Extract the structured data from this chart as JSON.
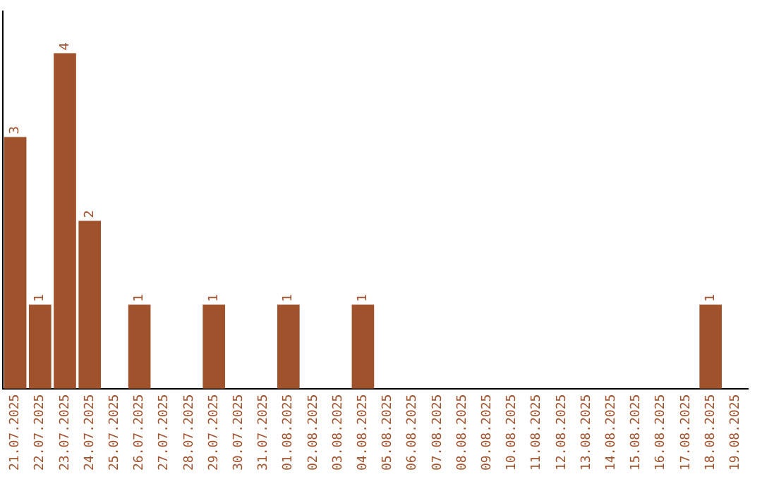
{
  "chart_data": {
    "type": "bar",
    "categories": [
      "21.07.2025",
      "22.07.2025",
      "23.07.2025",
      "24.07.2025",
      "25.07.2025",
      "26.07.2025",
      "27.07.2025",
      "28.07.2025",
      "29.07.2025",
      "30.07.2025",
      "31.07.2025",
      "01.08.2025",
      "02.08.2025",
      "03.08.2025",
      "04.08.2025",
      "05.08.2025",
      "06.08.2025",
      "07.08.2025",
      "08.08.2025",
      "09.08.2025",
      "10.08.2025",
      "11.08.2025",
      "12.08.2025",
      "13.08.2025",
      "14.08.2025",
      "15.08.2025",
      "16.08.2025",
      "17.08.2025",
      "18.08.2025",
      "19.08.2025"
    ],
    "values": [
      3,
      1,
      4,
      2,
      0,
      1,
      0,
      0,
      1,
      0,
      0,
      1,
      0,
      0,
      1,
      0,
      0,
      0,
      0,
      0,
      0,
      0,
      0,
      0,
      0,
      0,
      0,
      0,
      1,
      0
    ],
    "value_labels": [
      "3",
      "1",
      "4",
      "2",
      null,
      "1",
      null,
      null,
      "1",
      null,
      null,
      "1",
      null,
      null,
      "1",
      null,
      null,
      null,
      null,
      null,
      null,
      null,
      null,
      null,
      null,
      null,
      null,
      null,
      "1",
      null
    ],
    "color": "#a0522d",
    "grid": false,
    "legend": false
  }
}
